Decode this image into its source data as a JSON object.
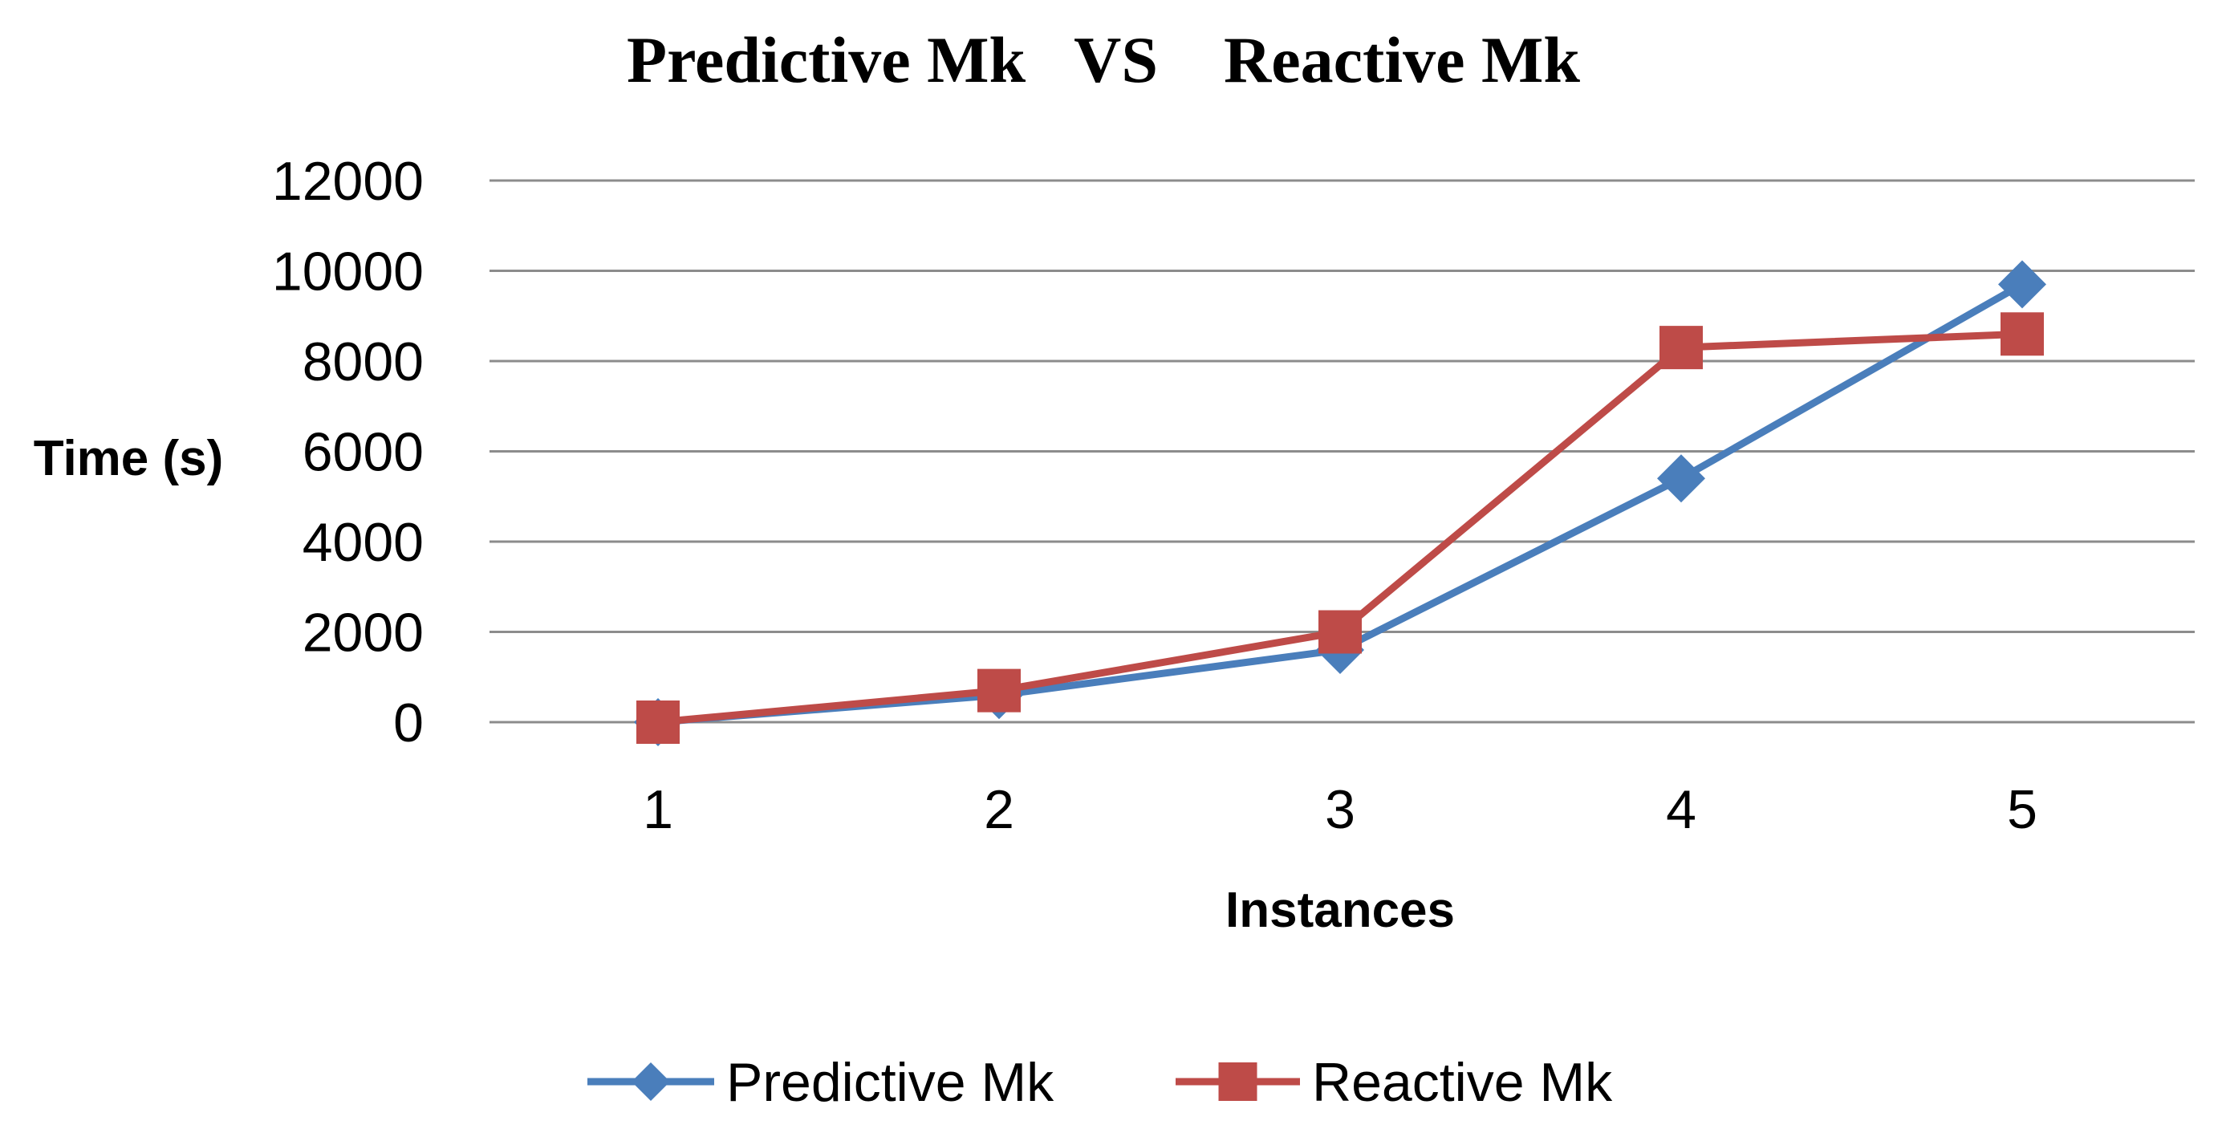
{
  "chart_data": {
    "type": "line",
    "title": "Predictive Mk   VS    Reactive Mk",
    "xlabel": "Instances",
    "ylabel": "Time (s)",
    "categories": [
      "1",
      "2",
      "3",
      "4",
      "5"
    ],
    "ylim": [
      0,
      12000
    ],
    "yticks": [
      "0",
      "2000",
      "4000",
      "6000",
      "8000",
      "10000",
      "12000"
    ],
    "grid": true,
    "legend_position": "bottom",
    "series": [
      {
        "name": "Predictive Mk",
        "color": "#4a7ebb",
        "marker": "diamond",
        "values": [
          0,
          600,
          1600,
          5400,
          9700
        ]
      },
      {
        "name": "Reactive Mk",
        "color": "#be4b48",
        "marker": "square",
        "values": [
          0,
          700,
          2000,
          8300,
          8600
        ]
      }
    ]
  }
}
